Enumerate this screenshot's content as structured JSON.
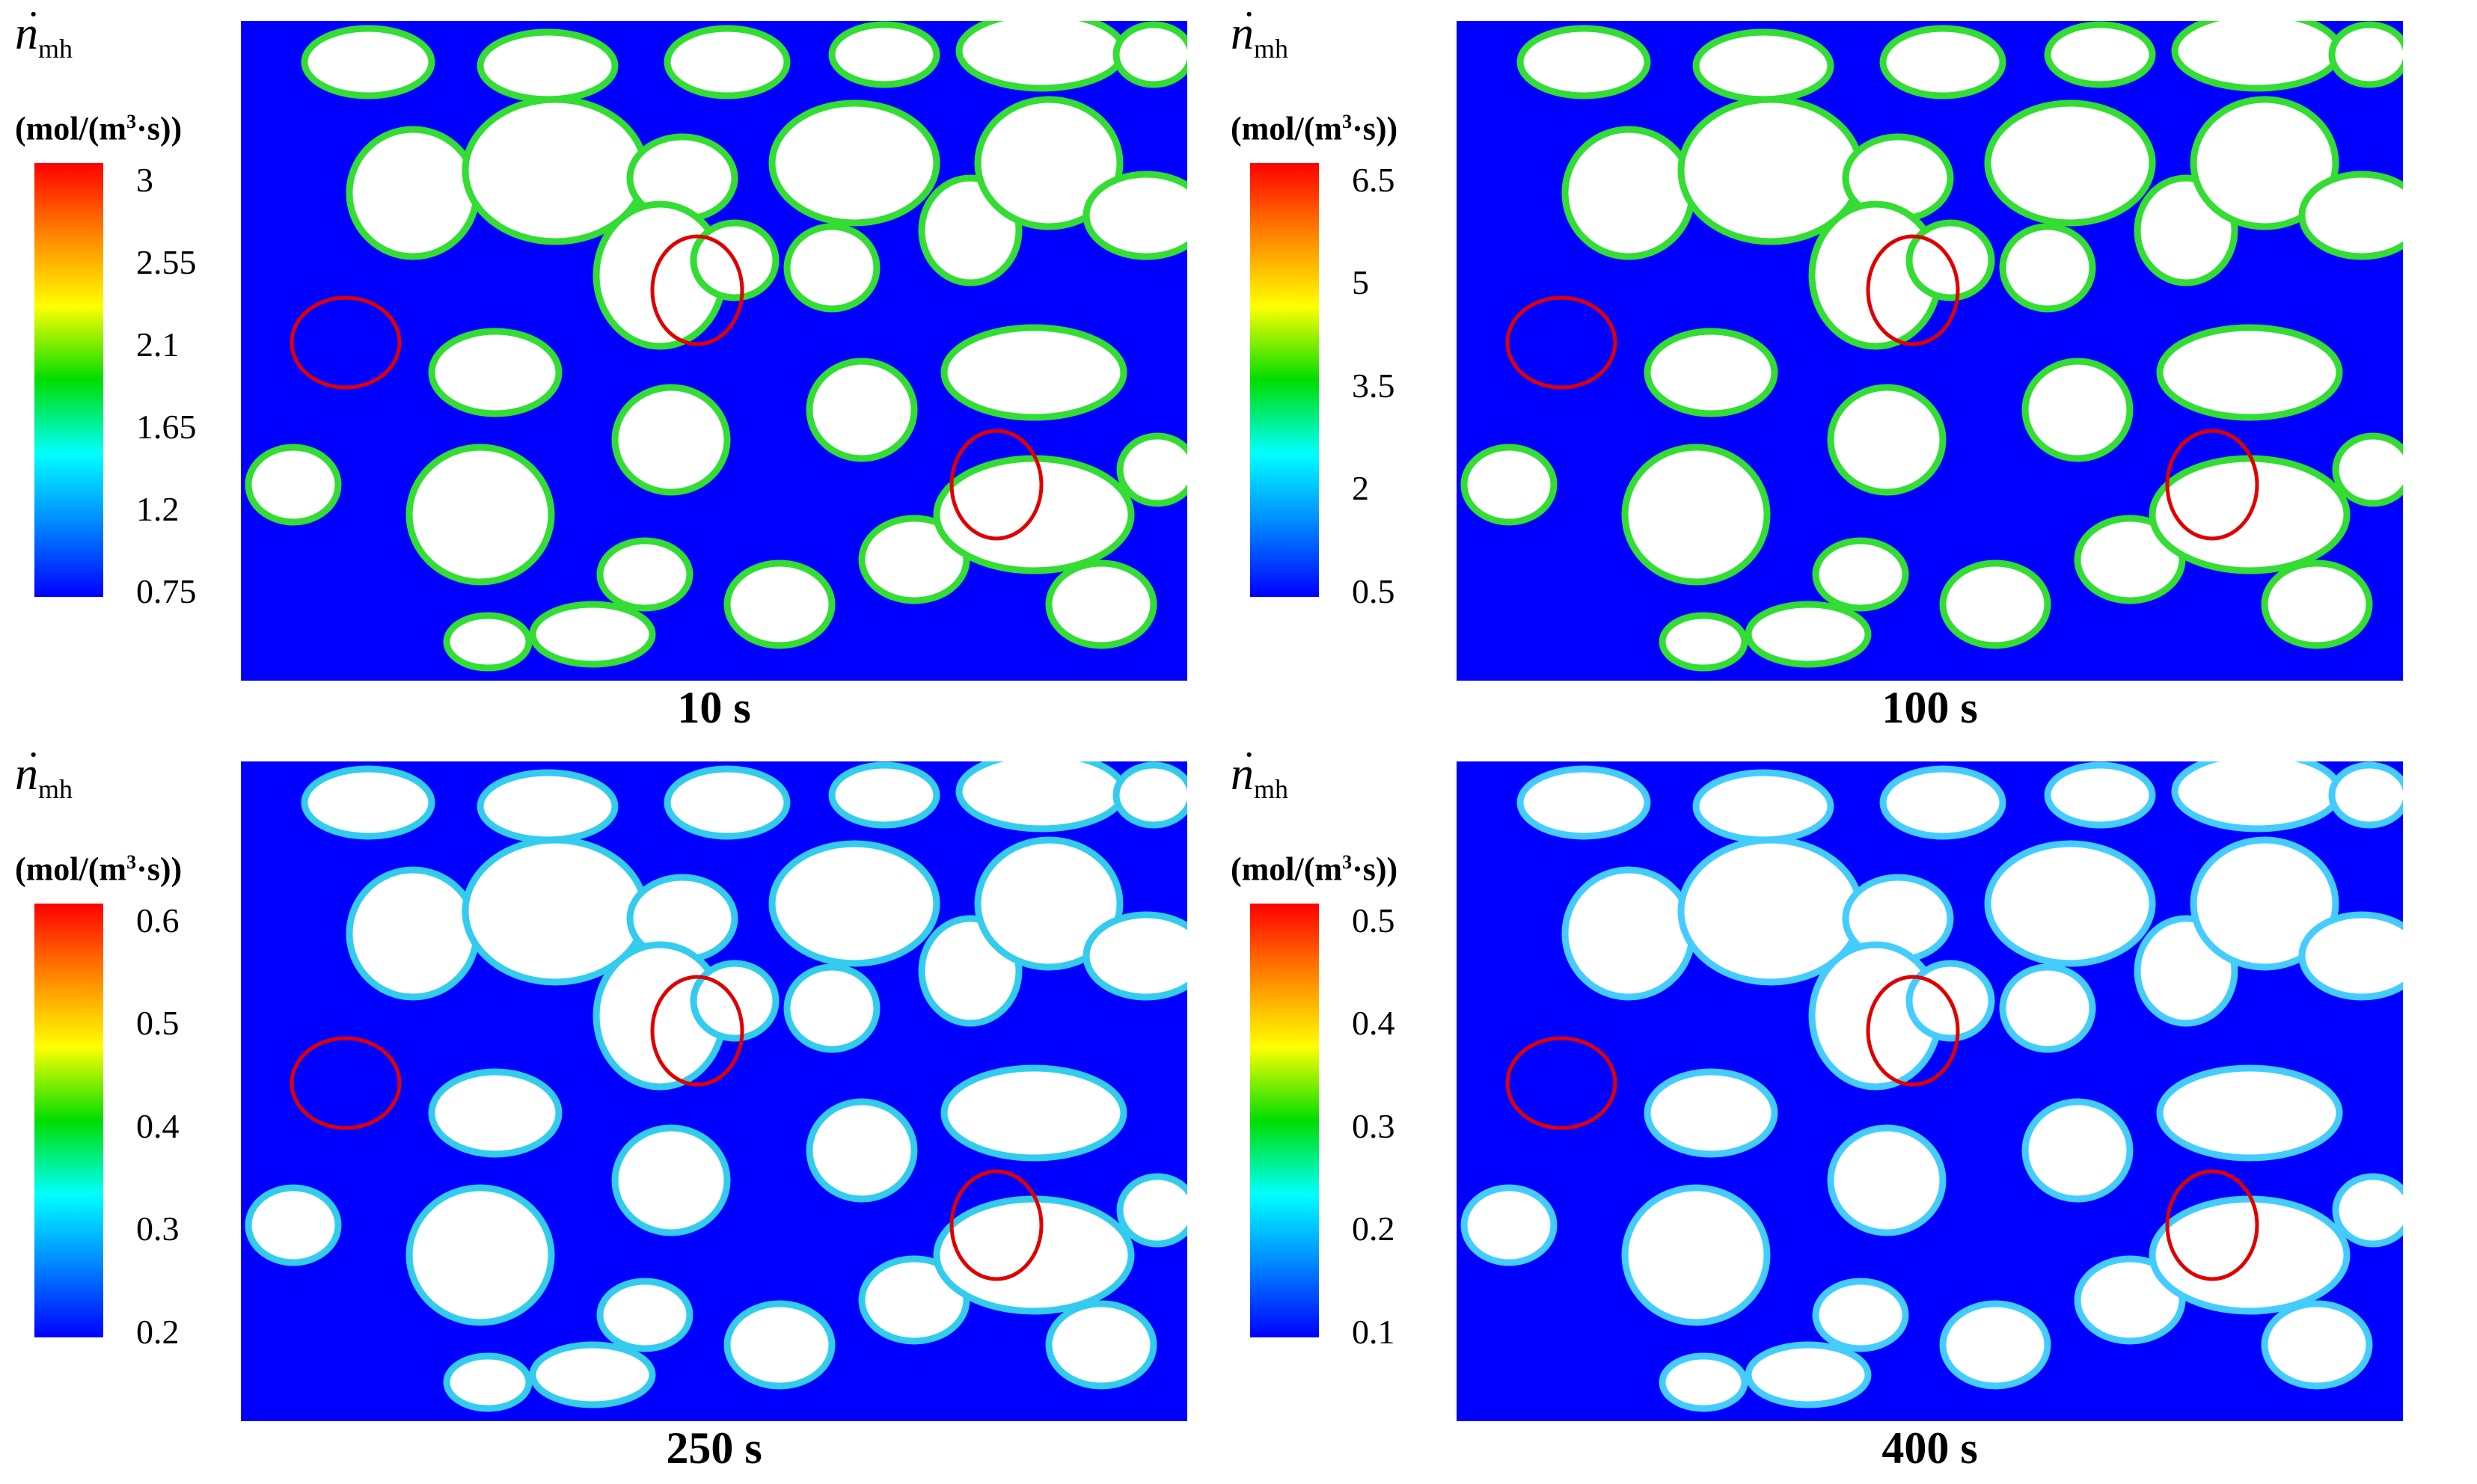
{
  "legend": {
    "symbol": "n",
    "dot": "·",
    "subscript": "mh",
    "unit_prefix": "(mol/(m",
    "unit_power": "3",
    "unit_suffix": "·s))"
  },
  "panels": [
    {
      "time_label": "10 s",
      "ticks": [
        "3",
        "2.55",
        "2.1",
        "1.65",
        "1.2",
        "0.75"
      ]
    },
    {
      "time_label": "100 s",
      "ticks": [
        "6.5",
        "5",
        "3.5",
        "2",
        "0.5"
      ]
    },
    {
      "time_label": "250 s",
      "ticks": [
        "0.6",
        "0.5",
        "0.4",
        "0.3",
        "0.2"
      ]
    },
    {
      "time_label": "400 s",
      "ticks": [
        "0.5",
        "0.4",
        "0.3",
        "0.2",
        "0.1"
      ]
    }
  ],
  "colors": {
    "pore_background": "#0000ff",
    "grain": "#ffffff",
    "highlight_circle": "#e00000",
    "panel_rims": [
      "#33dd33",
      "#33dd33",
      "#33ccee",
      "#44ccff"
    ]
  }
}
